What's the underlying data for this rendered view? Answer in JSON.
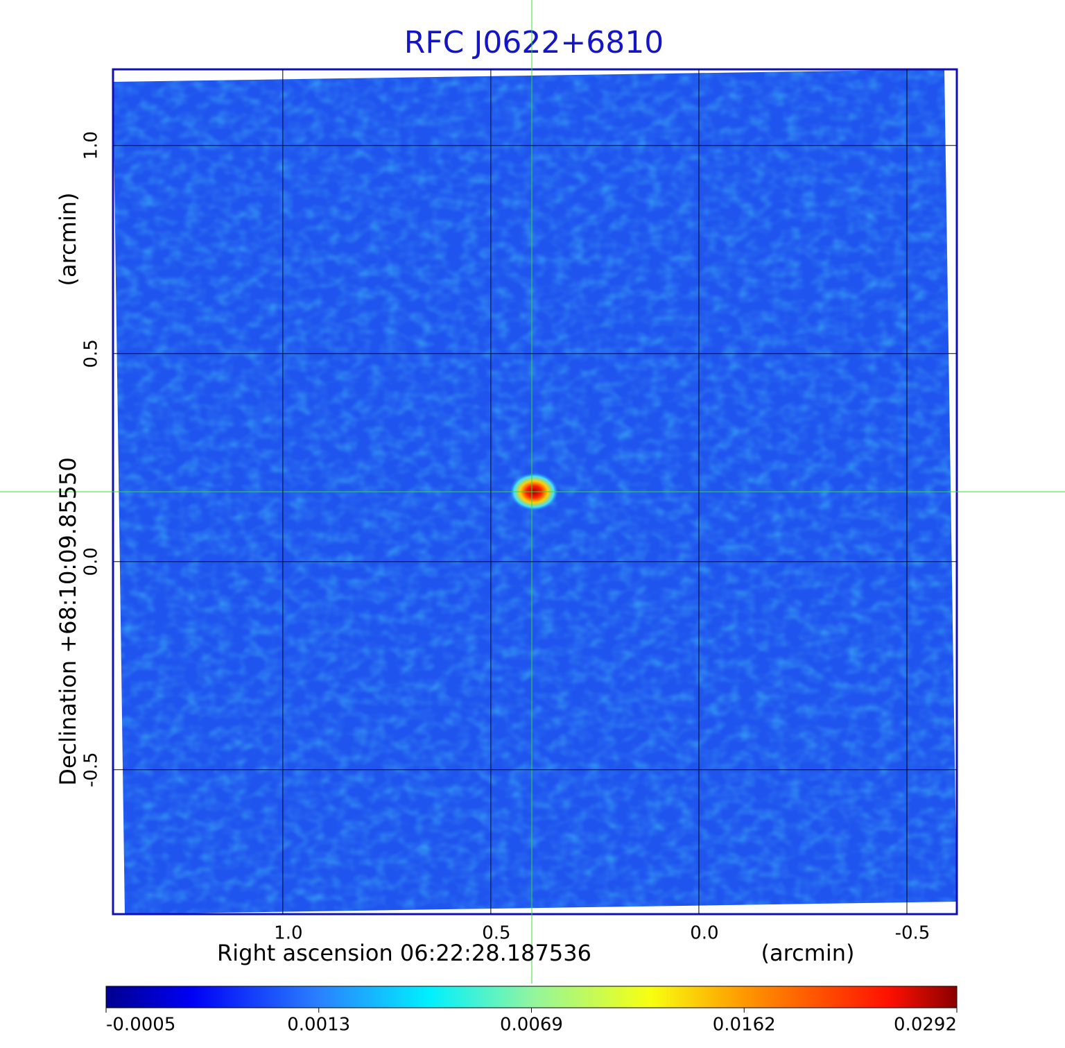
{
  "chart_data": {
    "type": "image",
    "title": "RFC J0622+6810",
    "x_label": "Right ascension  06:22:28.187536",
    "x_unit": "(arcmin)",
    "y_label": "Declination  +68:10:09.85550",
    "y_unit": "(arcmin)",
    "xlim": [
      1.408,
      -0.62
    ],
    "ylim": [
      -0.847,
      1.183
    ],
    "xticks": [
      {
        "value": 1,
        "label": "1.0"
      },
      0.5,
      {
        "value": 0,
        "label": "0.0"
      },
      -0.5
    ],
    "yticks": [
      {
        "value": 1,
        "label": "1.0"
      },
      0.5,
      {
        "value": 0,
        "label": "0.0"
      },
      -0.5
    ],
    "grid": true,
    "colorbar_ticks": [
      -0.0005,
      0.0013,
      0.0069,
      0.0162,
      0.0292
    ]
  }
}
